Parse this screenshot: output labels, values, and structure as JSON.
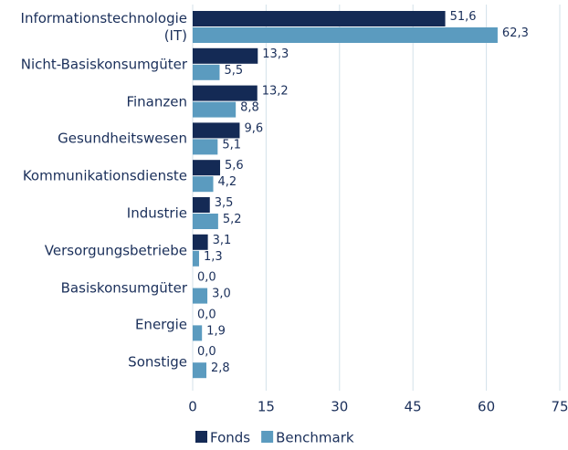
{
  "chart_data": {
    "type": "hbar",
    "categories": [
      "Informationstechnologie\n(IT)",
      "Nicht-Basiskonsumgüter",
      "Finanzen",
      "Gesundheitswesen",
      "Kommunikationsdienste",
      "Industrie",
      "Versorgungsbetriebe",
      "Basiskonsumgüter",
      "Energie",
      "Sonstige"
    ],
    "series": [
      {
        "name": "Fonds",
        "color": "#142a55",
        "values": [
          51.6,
          13.3,
          13.2,
          9.6,
          5.6,
          3.5,
          3.1,
          0,
          0,
          0
        ],
        "value_labels": [
          "51,6",
          "13,3",
          "13,2",
          "9,6",
          "5,6",
          "3,5",
          "3,1",
          "0,0",
          "0,0",
          "0,0"
        ]
      },
      {
        "name": "Benchmark",
        "color": "#5b9bbf",
        "values": [
          62.3,
          5.5,
          8.8,
          5.1,
          4.2,
          5.2,
          1.3,
          3.0,
          1.9,
          2.8
        ],
        "value_labels": [
          "62,3",
          "5,5",
          "8,8",
          "5,1",
          "4,2",
          "5,2",
          "1,3",
          "3,0",
          "1,9",
          "2,8"
        ]
      }
    ],
    "xlim": [
      0,
      75
    ],
    "xticks": [
      0,
      15,
      30,
      45,
      60,
      75
    ],
    "grid": true,
    "legend": "bottom"
  }
}
